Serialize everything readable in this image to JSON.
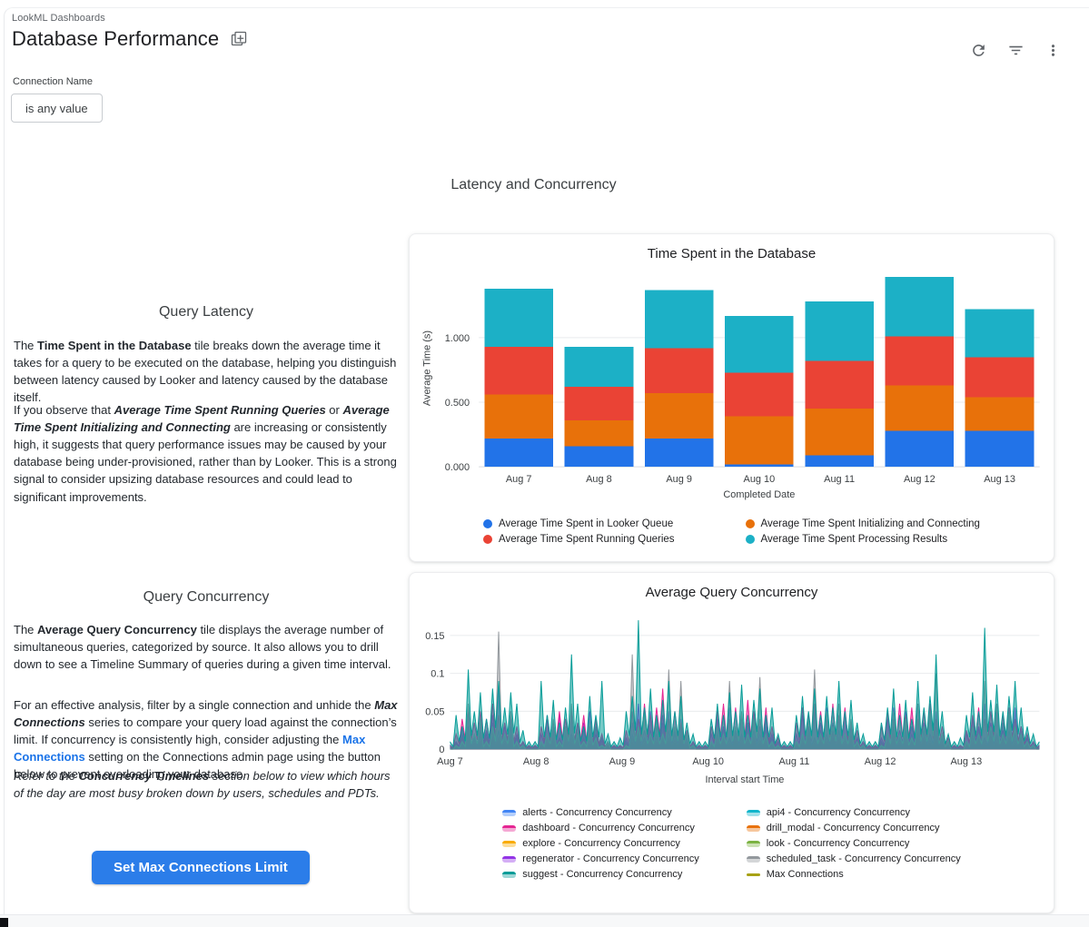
{
  "header": {
    "breadcrumb": "LookML Dashboards",
    "title": "Database Performance",
    "title_icon": "copy-dashboard-icon",
    "icons": [
      "refresh-icon",
      "filter-icon",
      "kebab-menu-icon"
    ]
  },
  "filter": {
    "label": "Connection Name",
    "value": "is any value"
  },
  "section": {
    "title": "Latency and Concurrency"
  },
  "left_column": {
    "query_latency": {
      "heading": "Query Latency",
      "p1": [
        {
          "t": "The "
        },
        {
          "t": "Time Spent in the Database",
          "b": true
        },
        {
          "t": " tile breaks down the average time it takes for a query to be executed on the database, helping you distinguish between latency caused by Looker and latency caused by the database itself."
        }
      ],
      "p2": [
        {
          "t": "If you observe that "
        },
        {
          "t": "Average Time Spent Running Queries",
          "b": true,
          "i": true
        },
        {
          "t": " or "
        },
        {
          "t": "Average Time Spent Initializing and Connecting",
          "b": true,
          "i": true
        },
        {
          "t": " are increasing or consistently high, it suggests that query performance issues may be caused by your database being under-provisioned, rather than by Looker. This is a strong signal to consider upsizing database resources and could lead to significant improvements."
        }
      ]
    },
    "query_concurrency": {
      "heading": "Query Concurrency",
      "p1": [
        {
          "t": "The "
        },
        {
          "t": "Average Query Concurrency",
          "b": true
        },
        {
          "t": " tile displays the average number of simultaneous queries, categorized by source. It also allows you to drill down to see a Timeline Summary of queries during a given time interval."
        }
      ],
      "p2": [
        {
          "t": "For an effective analysis, filter by a single connection and unhide the "
        },
        {
          "t": "Max Connections",
          "b": true,
          "i": true
        },
        {
          "t": " series to compare your query load against the connection’s limit. If concurrency is consistently high, consider adjusting the "
        },
        {
          "t": "Max Connections",
          "a": true
        },
        {
          "t": " setting on the Connections admin page using the button below to prevent overloading your database."
        }
      ],
      "p3": [
        {
          "t": "Refer to the ",
          "i": true
        },
        {
          "t": "Concurrency Timelines",
          "b": true,
          "i": true
        },
        {
          "t": " section below to view which hours of the day are most busy broken down by users, schedules and PDTs.",
          "i": true
        }
      ]
    },
    "button": "Set Max Connections Limit"
  },
  "chart_data": [
    {
      "type": "bar",
      "stacked": true,
      "title": "Time Spent in the Database",
      "xlabel": "Completed Date",
      "ylabel": "Average Time (s)",
      "ylim": [
        0,
        1.52
      ],
      "grid": true,
      "legend_position": "bottom",
      "yticks": [
        {
          "v": 0,
          "label": "0.000"
        },
        {
          "v": 0.5,
          "label": "0.500"
        },
        {
          "v": 1,
          "label": "1.000"
        }
      ],
      "categories": [
        "Aug 7",
        "Aug 8",
        "Aug 9",
        "Aug 10",
        "Aug 11",
        "Aug 12",
        "Aug 13"
      ],
      "series": [
        {
          "name": "Average Time Spent in Looker Queue",
          "color": "#2273E8",
          "values": [
            0.22,
            0.16,
            0.22,
            0.02,
            0.09,
            0.28,
            0.28
          ]
        },
        {
          "name": "Average Time Spent Initializing and Connecting",
          "color": "#E8710A",
          "values": [
            0.34,
            0.2,
            0.35,
            0.37,
            0.36,
            0.35,
            0.26
          ]
        },
        {
          "name": "Average Time Spent Running Queries",
          "color": "#EA4335",
          "values": [
            0.37,
            0.26,
            0.35,
            0.34,
            0.37,
            0.38,
            0.31
          ]
        },
        {
          "name": "Average Time Spent Processing Results",
          "color": "#1CB0C6",
          "values": [
            0.45,
            0.31,
            0.45,
            0.44,
            0.46,
            0.46,
            0.37
          ]
        }
      ],
      "legend_columns": [
        [
          0,
          2
        ],
        [
          1,
          3
        ]
      ]
    },
    {
      "type": "area",
      "title": "Average Query Concurrency",
      "xlabel": "Interval start Time",
      "ylabel": "",
      "ylim": [
        0,
        0.1845
      ],
      "grid": true,
      "legend_position": "bottom",
      "yticks": [
        {
          "v": 0,
          "label": "0"
        },
        {
          "v": 0.05,
          "label": "0.05"
        },
        {
          "v": 0.1,
          "label": "0.1"
        },
        {
          "v": 0.15,
          "label": "0.15"
        }
      ],
      "x_ticks": [
        "Aug 7",
        "Aug 8",
        "Aug 9",
        "Aug 10",
        "Aug 11",
        "Aug 12",
        "Aug 13"
      ],
      "points_per_day": 14,
      "series": [
        {
          "name": "alerts - Concurrency Concurrency",
          "color": "#4285F4",
          "z": 1,
          "day_pattern": [
            0.002,
            0.005,
            0.01,
            0.015,
            0.008,
            0.012,
            0.01,
            0.015,
            0.012,
            0.008,
            0.012,
            0.006,
            0.004,
            0.002
          ]
        },
        {
          "name": "dashboard - Concurrency Concurrency",
          "color": "#E52592",
          "z": 7,
          "days": [
            [
              0.005,
              0.02,
              0.04,
              0.055,
              0.035,
              0.05,
              0.04,
              0.06,
              0.045,
              0.035,
              0.05,
              0.03,
              0.01,
              0.005
            ],
            [
              0.005,
              0.03,
              0.045,
              0.035,
              0.05,
              0.04,
              0.055,
              0.035,
              0.045,
              0.03,
              0.04,
              0.02,
              0.01,
              0.005
            ],
            [
              0.005,
              0.025,
              0.05,
              0.04,
              0.06,
              0.045,
              0.055,
              0.08,
              0.04,
              0.05,
              0.035,
              0.025,
              0.01,
              0.005
            ],
            [
              0.005,
              0.03,
              0.05,
              0.06,
              0.04,
              0.055,
              0.045,
              0.065,
              0.05,
              0.04,
              0.055,
              0.03,
              0.015,
              0.005
            ],
            [
              0.005,
              0.035,
              0.055,
              0.045,
              0.06,
              0.05,
              0.04,
              0.06,
              0.045,
              0.055,
              0.035,
              0.025,
              0.01,
              0.005
            ],
            [
              0.005,
              0.03,
              0.05,
              0.04,
              0.06,
              0.045,
              0.055,
              0.04,
              0.05,
              0.06,
              0.04,
              0.03,
              0.015,
              0.005
            ],
            [
              0.005,
              0.025,
              0.045,
              0.055,
              0.04,
              0.05,
              0.06,
              0.045,
              0.055,
              0.04,
              0.03,
              0.02,
              0.01,
              0.005
            ]
          ]
        },
        {
          "name": "explore - Concurrency Concurrency",
          "color": "#F9AB00",
          "z": 2,
          "day_pattern": [
            0.003,
            0.008,
            0.015,
            0.02,
            0.012,
            0.018,
            0.015,
            0.022,
            0.015,
            0.012,
            0.018,
            0.01,
            0.005,
            0.003
          ]
        },
        {
          "name": "regenerator - Concurrency Concurrency",
          "color": "#9334E6",
          "z": 6,
          "days": [
            [
              0.005,
              0.01,
              0.03,
              0.05,
              0.02,
              0.04,
              0.025,
              0.045,
              0.08,
              0.03,
              0.04,
              0.02,
              0.01,
              0.005
            ],
            [
              0.005,
              0.02,
              0.04,
              0.025,
              0.045,
              0.03,
              0.05,
              0.02,
              0.035,
              0.05,
              0.02,
              0.012,
              0.01,
              0.005
            ],
            [
              0.005,
              0.015,
              0.035,
              0.06,
              0.025,
              0.05,
              0.03,
              0.045,
              0.05,
              0.025,
              0.04,
              0.015,
              0.01,
              0.005
            ],
            [
              0.005,
              0.02,
              0.04,
              0.03,
              0.055,
              0.025,
              0.045,
              0.035,
              0.05,
              0.03,
              0.04,
              0.02,
              0.01,
              0.005
            ],
            [
              0.005,
              0.02,
              0.045,
              0.03,
              0.05,
              0.035,
              0.055,
              0.025,
              0.04,
              0.05,
              0.03,
              0.015,
              0.01,
              0.005
            ],
            [
              0.005,
              0.015,
              0.04,
              0.055,
              0.025,
              0.05,
              0.03,
              0.06,
              0.035,
              0.045,
              0.05,
              0.02,
              0.01,
              0.005
            ],
            [
              0.005,
              0.02,
              0.04,
              0.03,
              0.06,
              0.035,
              0.05,
              0.025,
              0.045,
              0.055,
              0.03,
              0.015,
              0.01,
              0.005
            ]
          ]
        },
        {
          "name": "suggest - Concurrency Concurrency",
          "color": "#079C98",
          "z": 9,
          "days": [
            [
              0.01,
              0.045,
              0.03,
              0.105,
              0.05,
              0.075,
              0.04,
              0.08,
              0.09,
              0.055,
              0.075,
              0.06,
              0.025,
              0.01
            ],
            [
              0.01,
              0.09,
              0.045,
              0.065,
              0.035,
              0.055,
              0.125,
              0.06,
              0.03,
              0.07,
              0.045,
              0.09,
              0.02,
              0.01
            ],
            [
              0.015,
              0.05,
              0.07,
              0.17,
              0.055,
              0.08,
              0.045,
              0.065,
              0.09,
              0.05,
              0.07,
              0.035,
              0.02,
              0.01
            ],
            [
              0.01,
              0.04,
              0.06,
              0.045,
              0.075,
              0.05,
              0.085,
              0.045,
              0.065,
              0.08,
              0.045,
              0.055,
              0.02,
              0.01
            ],
            [
              0.01,
              0.045,
              0.07,
              0.05,
              0.08,
              0.045,
              0.07,
              0.055,
              0.09,
              0.05,
              0.065,
              0.035,
              0.02,
              0.01
            ],
            [
              0.01,
              0.035,
              0.055,
              0.08,
              0.045,
              0.065,
              0.04,
              0.09,
              0.055,
              0.07,
              0.125,
              0.05,
              0.02,
              0.01
            ],
            [
              0.015,
              0.045,
              0.075,
              0.05,
              0.16,
              0.065,
              0.085,
              0.05,
              0.07,
              0.09,
              0.055,
              0.03,
              0.02,
              0.01
            ]
          ]
        },
        {
          "name": "api4 - Concurrency Concurrency",
          "color": "#12B5CB",
          "z": 5,
          "day_pattern": [
            0.005,
            0.01,
            0.02,
            0.03,
            0.015,
            0.025,
            0.02,
            0.035,
            0.025,
            0.02,
            0.03,
            0.015,
            0.01,
            0.005
          ]
        },
        {
          "name": "drill_modal - Concurrency Concurrency",
          "color": "#E8710A",
          "z": 4,
          "day_pattern": [
            0.002,
            0.005,
            0.009,
            0.013,
            0.007,
            0.011,
            0.009,
            0.014,
            0.011,
            0.007,
            0.011,
            0.006,
            0.003,
            0.002
          ]
        },
        {
          "name": "look - Concurrency Concurrency",
          "color": "#7CB342",
          "z": 3,
          "day_pattern": [
            0.002,
            0.004,
            0.008,
            0.012,
            0.006,
            0.01,
            0.008,
            0.012,
            0.01,
            0.006,
            0.01,
            0.005,
            0.003,
            0.002
          ]
        },
        {
          "name": "scheduled_task - Concurrency Concurrency",
          "color": "#93989D",
          "z": 8,
          "days": [
            [
              0,
              0.005,
              0.01,
              0.06,
              0.02,
              0.04,
              0.01,
              0.03,
              0.155,
              0.02,
              0.05,
              0.01,
              0.005,
              0
            ],
            [
              0,
              0.01,
              0.02,
              0.04,
              0.01,
              0.03,
              0.06,
              0.02,
              0.01,
              0.04,
              0.015,
              0.005,
              0.01,
              0
            ],
            [
              0,
              0.005,
              0.125,
              0.03,
              0.05,
              0.02,
              0.04,
              0.02,
              0.105,
              0.03,
              0.09,
              0.02,
              0.005,
              0
            ],
            [
              0,
              0.01,
              0.03,
              0.02,
              0.09,
              0.03,
              0.05,
              0.02,
              0.04,
              0.095,
              0.02,
              0.01,
              0.005,
              0
            ],
            [
              0,
              0.01,
              0.02,
              0.04,
              0.105,
              0.02,
              0.05,
              0.03,
              0.06,
              0.02,
              0.04,
              0.01,
              0.005,
              0
            ],
            [
              0,
              0.005,
              0.02,
              0.05,
              0.02,
              0.04,
              0.015,
              0.06,
              0.03,
              0.05,
              0.1,
              0.02,
              0.01,
              0
            ],
            [
              0,
              0.01,
              0.03,
              0.02,
              0.09,
              0.03,
              0.06,
              0.02,
              0.05,
              0.03,
              0.02,
              0.01,
              0.005,
              0
            ]
          ]
        },
        {
          "name": "Max Connections",
          "color": "#A8A116",
          "z": 0,
          "visible": false,
          "line_only": true,
          "day_pattern": []
        }
      ],
      "legend_columns": [
        [
          0,
          1,
          2,
          3,
          4
        ],
        [
          5,
          6,
          7,
          8,
          9
        ]
      ]
    }
  ]
}
